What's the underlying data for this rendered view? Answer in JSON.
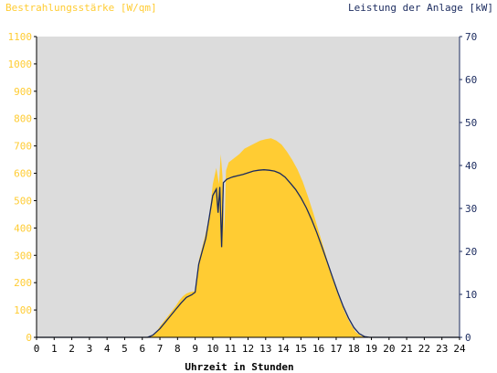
{
  "chart_data": {
    "type": "area",
    "title_left": "Bestrahlungsstärke [W/qm]",
    "title_right": "Leistung der Anlage [kW]",
    "xlabel": "Uhrzeit in Stunden",
    "xlim": [
      0,
      24
    ],
    "ylim_left": [
      0,
      1100
    ],
    "ylim_right": [
      0,
      70
    ],
    "x_ticks": [
      "0",
      "1",
      "2",
      "3",
      "4",
      "5",
      "6",
      "7",
      "8",
      "9",
      "10",
      "11",
      "12",
      "13",
      "14",
      "15",
      "16",
      "17",
      "18",
      "19",
      "20",
      "21",
      "22",
      "23",
      "24"
    ],
    "y_left_ticks": [
      "0",
      "100",
      "200",
      "300",
      "400",
      "500",
      "600",
      "700",
      "800",
      "900",
      "1000",
      "1100"
    ],
    "y_right_ticks": [
      "0",
      "10",
      "20",
      "30",
      "40",
      "50",
      "60",
      "70"
    ],
    "colors": {
      "plot_background": "#dcdcdc",
      "irradiance_fill": "#ffcc33",
      "power_line": "#1a2a5e",
      "left_axis_text": "#ffcc33",
      "right_axis_text": "#1a2a5e",
      "x_axis_text": "#000000"
    },
    "series": [
      {
        "name": "Bestrahlungsstärke [W/qm]",
        "axis": "left",
        "style": "area",
        "x": [
          0,
          6.2,
          6.5,
          6.8,
          7.0,
          7.3,
          7.6,
          7.9,
          8.1,
          8.3,
          8.5,
          8.7,
          9.0,
          9.2,
          9.4,
          9.6,
          9.8,
          10.0,
          10.2,
          10.35,
          10.45,
          10.55,
          10.65,
          10.75,
          10.9,
          11.2,
          11.5,
          11.8,
          12.1,
          12.4,
          12.7,
          13.0,
          13.3,
          13.6,
          13.9,
          14.2,
          14.5,
          14.8,
          15.1,
          15.4,
          15.7,
          16.0,
          16.3,
          16.6,
          16.9,
          17.2,
          17.5,
          17.8,
          18.1,
          18.4,
          18.6,
          18.8,
          19.0,
          24
        ],
        "y": [
          0,
          0,
          5,
          20,
          40,
          65,
          90,
          115,
          135,
          150,
          160,
          165,
          170,
          280,
          330,
          380,
          440,
          560,
          620,
          560,
          670,
          590,
          380,
          610,
          640,
          655,
          670,
          690,
          700,
          710,
          720,
          725,
          728,
          720,
          705,
          680,
          650,
          615,
          570,
          515,
          455,
          390,
          325,
          260,
          195,
          140,
          90,
          50,
          20,
          6,
          2,
          0,
          0,
          0
        ]
      },
      {
        "name": "Leistung der Anlage [kW]",
        "axis": "right",
        "style": "line",
        "x": [
          0,
          6.3,
          6.6,
          7.0,
          7.3,
          7.6,
          7.9,
          8.2,
          8.5,
          8.8,
          9.0,
          9.2,
          9.4,
          9.6,
          9.8,
          10.0,
          10.2,
          10.3,
          10.4,
          10.5,
          10.6,
          10.8,
          11.1,
          11.4,
          11.7,
          12.0,
          12.3,
          12.6,
          12.9,
          13.2,
          13.5,
          13.8,
          14.1,
          14.4,
          14.7,
          15.0,
          15.3,
          15.6,
          15.9,
          16.2,
          16.5,
          16.8,
          17.1,
          17.4,
          17.7,
          18.0,
          18.3,
          18.6,
          18.9,
          19.0,
          24
        ],
        "y": [
          0,
          0,
          0.5,
          2,
          3.5,
          5,
          6.5,
          8,
          9.3,
          9.9,
          10.5,
          17,
          20,
          23,
          28,
          33,
          34.5,
          29,
          35,
          21,
          36,
          36.8,
          37.3,
          37.6,
          37.9,
          38.3,
          38.7,
          38.9,
          39.0,
          38.9,
          38.7,
          38.2,
          37.3,
          35.9,
          34.4,
          32.5,
          30.2,
          27.5,
          24.4,
          21.0,
          17.5,
          13.9,
          10.4,
          7.2,
          4.5,
          2.3,
          0.9,
          0.2,
          0,
          0,
          0
        ]
      }
    ]
  }
}
